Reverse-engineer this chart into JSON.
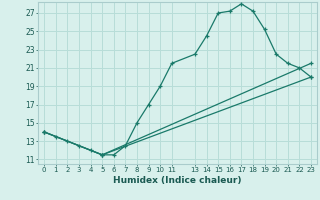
{
  "xlabel": "Humidex (Indice chaleur)",
  "ylabel": "",
  "bg_color": "#d8f0ec",
  "grid_color": "#b8ddd8",
  "line_color": "#1a7a6a",
  "xlim": [
    -0.5,
    23.5
  ],
  "ylim": [
    10.5,
    28.2
  ],
  "xticks": [
    0,
    1,
    2,
    3,
    4,
    5,
    6,
    7,
    8,
    9,
    10,
    11,
    13,
    14,
    15,
    16,
    17,
    18,
    19,
    20,
    21,
    22,
    23
  ],
  "yticks": [
    11,
    13,
    15,
    17,
    19,
    21,
    23,
    25,
    27
  ],
  "line1_x": [
    0,
    1,
    2,
    3,
    4,
    5,
    6,
    7,
    8,
    9,
    10,
    11,
    13,
    14,
    15,
    16,
    17,
    18,
    19,
    20,
    21,
    22,
    23
  ],
  "line1_y": [
    14.0,
    13.5,
    13.0,
    12.5,
    12.0,
    11.5,
    11.5,
    12.5,
    15.0,
    17.0,
    19.0,
    21.5,
    22.5,
    24.5,
    27.0,
    27.2,
    28.0,
    27.2,
    25.2,
    22.5,
    21.5,
    21.0,
    20.0
  ],
  "line2_x": [
    0,
    5,
    23
  ],
  "line2_y": [
    14.0,
    11.5,
    21.5
  ],
  "line3_x": [
    0,
    5,
    23
  ],
  "line3_y": [
    14.0,
    11.5,
    20.0
  ]
}
